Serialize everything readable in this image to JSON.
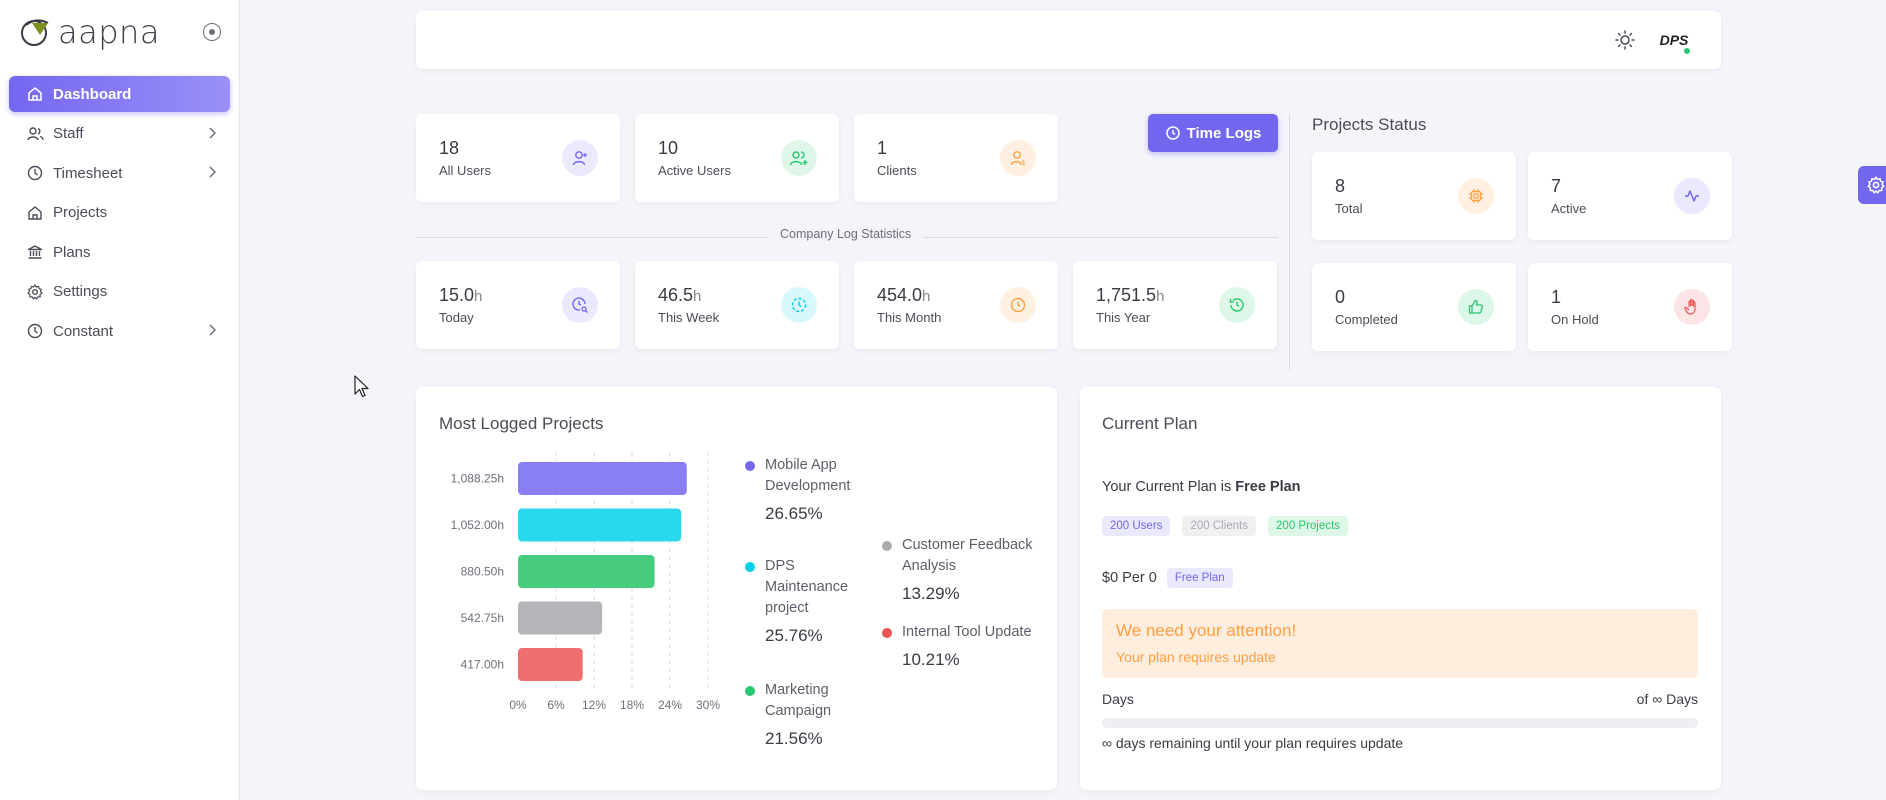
{
  "sidebar": {
    "brand": "aapna",
    "items": [
      {
        "label": "Dashboard",
        "icon": "home-icon",
        "active": true
      },
      {
        "label": "Staff",
        "icon": "users-icon",
        "chevron": true
      },
      {
        "label": "Timesheet",
        "icon": "clock-icon",
        "chevron": true
      },
      {
        "label": "Projects",
        "icon": "home-icon"
      },
      {
        "label": "Plans",
        "icon": "bank-icon"
      },
      {
        "label": "Settings",
        "icon": "gear-icon"
      },
      {
        "label": "Constant",
        "icon": "clock-icon",
        "chevron": true
      }
    ]
  },
  "header": {
    "avatar_text": "DPS"
  },
  "users": [
    {
      "value": "18",
      "label": "All Users",
      "color": "#7367f0",
      "bg": "#ebe9fd"
    },
    {
      "value": "10",
      "label": "Active Users",
      "color": "#28c76f",
      "bg": "#dff7e9"
    },
    {
      "value": "1",
      "label": "Clients",
      "color": "#ff9f43",
      "bg": "#fff0e1"
    }
  ],
  "time_logs_label": "Time Logs",
  "company_log_label": "Company Log Statistics",
  "logs": [
    {
      "value": "15.0",
      "unit": "h",
      "label": "Today",
      "color": "#7367f0",
      "bg": "#ebe9fd"
    },
    {
      "value": "46.5",
      "unit": "h",
      "label": "This Week",
      "color": "#00cfe8",
      "bg": "#d9f8fc"
    },
    {
      "value": "454.0",
      "unit": "h",
      "label": "This Month",
      "color": "#ff9f43",
      "bg": "#fff0e1"
    },
    {
      "value": "1,751.5",
      "unit": "h",
      "label": "This Year",
      "color": "#28c76f",
      "bg": "#dff7e9"
    }
  ],
  "projects_status": {
    "title": "Projects Status",
    "items": [
      {
        "value": "8",
        "label": "Total",
        "color": "#ff9f43",
        "bg": "#fff0e1"
      },
      {
        "value": "7",
        "label": "Active",
        "color": "#7367f0",
        "bg": "#ebe9fd"
      },
      {
        "value": "0",
        "label": "Completed",
        "color": "#28c76f",
        "bg": "#dff7e9"
      },
      {
        "value": "1",
        "label": "On Hold",
        "color": "#ea5455",
        "bg": "#fce5e6"
      }
    ]
  },
  "most_logged": {
    "title": "Most Logged Projects",
    "legend": [
      {
        "name": "Mobile App Development",
        "pct": "26.65%",
        "color": "#7367f0"
      },
      {
        "name": "DPS Maintenance project",
        "pct": "25.76%",
        "color": "#00cfe8"
      },
      {
        "name": "Marketing Campaign",
        "pct": "21.56%",
        "color": "#28c76f"
      },
      {
        "name": "Customer Feedback Analysis",
        "pct": "13.29%",
        "color": "#a8aaae"
      },
      {
        "name": "Internal Tool Update",
        "pct": "10.21%",
        "color": "#ea5455"
      }
    ]
  },
  "chart_data": {
    "type": "bar",
    "orientation": "horizontal",
    "categories": [
      "1,088.25h",
      "1,052.00h",
      "880.50h",
      "542.75h",
      "417.00h"
    ],
    "values": [
      26.65,
      25.76,
      21.56,
      13.29,
      10.21
    ],
    "colors": [
      "#8a7ff2",
      "#29d8ec",
      "#48cd7e",
      "#b4b5b9",
      "#ef6e6e"
    ],
    "xticks": [
      "0%",
      "6%",
      "12%",
      "18%",
      "24%",
      "30%"
    ],
    "xlim": [
      0,
      30
    ],
    "grid": true
  },
  "current_plan": {
    "title": "Current Plan",
    "line_prefix": "Your Current Plan is",
    "plan_name": "Free Plan",
    "badges": [
      {
        "text": "200 Users",
        "color": "#7367f0",
        "bg": "#ebe9fd"
      },
      {
        "text": "200 Clients",
        "color": "#a8aaae",
        "bg": "#f0f0f2"
      },
      {
        "text": "200 Projects",
        "color": "#28c76f",
        "bg": "#dff7e9"
      }
    ],
    "price": "$0 Per 0",
    "price_badge": "Free Plan",
    "alert_title": "We need your attention!",
    "alert_text": "Your plan requires update",
    "days_label": "Days",
    "days_of": "of ∞ Days",
    "progress": 0,
    "remaining": "∞ days remaining until your plan requires update"
  }
}
